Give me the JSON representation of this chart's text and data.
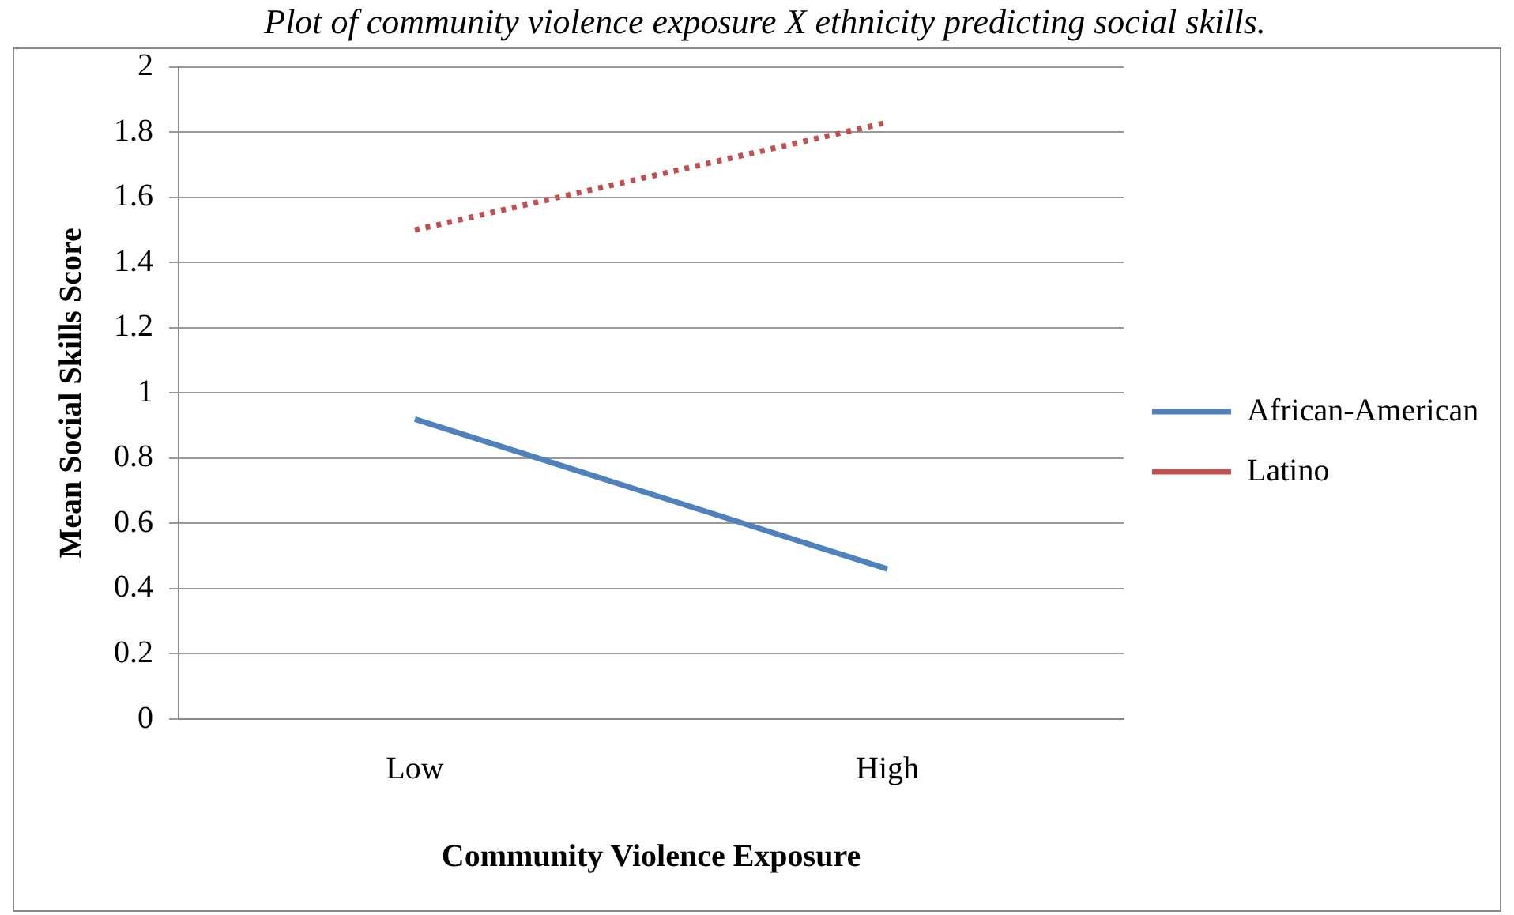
{
  "chart_data": {
    "type": "line",
    "title": "Plot of community violence exposure X ethnicity predicting social skills.",
    "xlabel": "Community Violence Exposure",
    "ylabel": "Mean Social Skills Score",
    "categories": [
      "Low",
      "High"
    ],
    "series": [
      {
        "name": "African-American",
        "color": "#4f81bd",
        "values": [
          0.92,
          0.46
        ],
        "line_style": "solid"
      },
      {
        "name": "Latino",
        "color": "#c0504d",
        "values": [
          1.5,
          1.83
        ],
        "line_style": "dotted"
      }
    ],
    "ylim": [
      0,
      2
    ],
    "yticks": [
      0,
      0.2,
      0.4,
      0.6,
      0.8,
      1,
      1.2,
      1.4,
      1.6,
      1.8,
      2
    ],
    "grid": "y",
    "legend": "right",
    "marker": "none"
  }
}
